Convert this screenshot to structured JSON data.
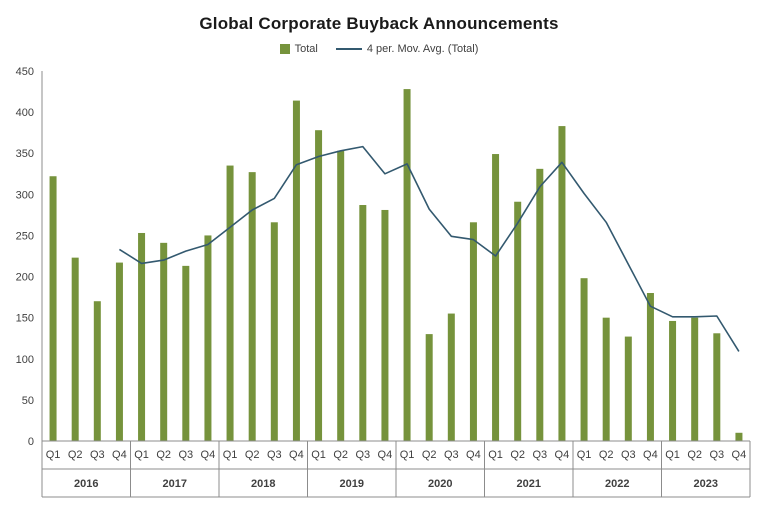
{
  "chart_data": {
    "type": "bar",
    "title": "Global Corporate Buyback Announcements",
    "categories": [
      "Q1",
      "Q2",
      "Q3",
      "Q4",
      "Q1",
      "Q2",
      "Q3",
      "Q4",
      "Q1",
      "Q2",
      "Q3",
      "Q4",
      "Q1",
      "Q2",
      "Q3",
      "Q4",
      "Q1",
      "Q2",
      "Q3",
      "Q4",
      "Q1",
      "Q2",
      "Q3",
      "Q4",
      "Q1",
      "Q2",
      "Q3",
      "Q4",
      "Q1",
      "Q2",
      "Q3",
      "Q4"
    ],
    "years": [
      "2016",
      "2017",
      "2018",
      "2019",
      "2020",
      "2021",
      "2022",
      "2023"
    ],
    "series": [
      {
        "name": "Total",
        "type": "bar",
        "color": "#76933C",
        "values": [
          322,
          223,
          170,
          217,
          253,
          241,
          213,
          250,
          335,
          327,
          266,
          414,
          378,
          353,
          287,
          281,
          428,
          130,
          155,
          266,
          349,
          291,
          331,
          383,
          198,
          150,
          127,
          180,
          146,
          150,
          131,
          10
        ]
      },
      {
        "name": "4 per. Mov. Avg. (Total)",
        "type": "line",
        "color": "#33596F",
        "values": [
          null,
          null,
          null,
          233,
          216,
          220,
          231,
          239,
          260,
          281,
          295,
          336,
          346,
          353,
          358,
          325,
          337,
          282,
          249,
          245,
          225,
          265,
          309,
          339,
          301,
          266,
          215,
          164,
          151,
          151,
          152,
          109
        ]
      }
    ],
    "xlabel": "",
    "ylabel": "",
    "ylim": [
      0,
      450
    ],
    "yticks": [
      0,
      50,
      100,
      150,
      200,
      250,
      300,
      350,
      400,
      450
    ],
    "grid": false,
    "legend_position": "top"
  }
}
